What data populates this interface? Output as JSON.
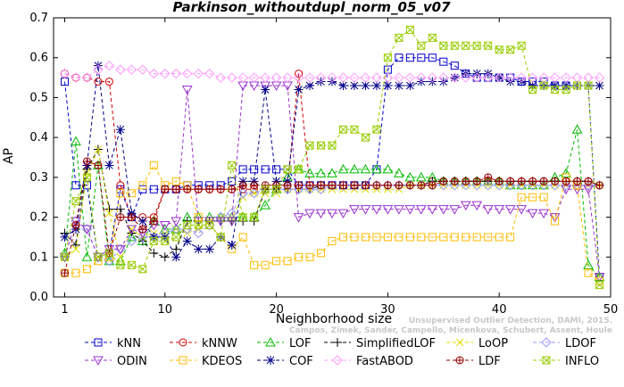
{
  "chart_data": {
    "type": "line",
    "title": "Parkinson_withoutdupl_norm_05_v07",
    "xlabel": "Neighborhood size",
    "ylabel": "AP",
    "xlim": [
      0,
      50
    ],
    "ylim": [
      0,
      0.7
    ],
    "xticks": [
      1,
      10,
      20,
      30,
      40,
      50
    ],
    "yticks": [
      0.0,
      0.1,
      0.2,
      0.3,
      0.4,
      0.5,
      0.6,
      0.7
    ],
    "x": [
      1,
      2,
      3,
      4,
      5,
      6,
      7,
      8,
      9,
      10,
      11,
      12,
      13,
      14,
      15,
      16,
      17,
      18,
      19,
      20,
      21,
      22,
      23,
      24,
      25,
      26,
      27,
      28,
      29,
      30,
      31,
      32,
      33,
      34,
      35,
      36,
      37,
      38,
      39,
      40,
      41,
      42,
      43,
      44,
      45,
      46,
      47,
      48,
      49
    ],
    "grid": false,
    "legend_position": "bottom",
    "watermark": [
      "Unsupervised Outlier Detection, DAMI, 2015.",
      "Campos, Zimek, Sander, Campello, Micenkova, Schubert, Assent, Houle"
    ],
    "series": [
      {
        "name": "kNN",
        "color": "#0000cc",
        "marker": "square",
        "values": [
          0.54,
          0.28,
          0.28,
          0.1,
          0.11,
          0.27,
          0.2,
          0.27,
          0.27,
          0.27,
          0.27,
          0.28,
          0.28,
          0.28,
          0.28,
          0.29,
          0.32,
          0.32,
          0.32,
          0.32,
          0.32,
          0.28,
          0.28,
          0.28,
          0.28,
          0.28,
          0.28,
          0.28,
          0.32,
          0.57,
          0.6,
          0.6,
          0.6,
          0.6,
          0.59,
          0.58,
          0.56,
          0.55,
          0.55,
          0.55,
          0.55,
          0.54,
          0.54,
          0.54,
          0.53,
          0.53,
          0.53,
          0.53,
          0.05
        ]
      },
      {
        "name": "kNNW",
        "color": "#cc0000",
        "marker": "circle",
        "values": [
          0.56,
          0.55,
          0.55,
          0.54,
          0.54,
          0.28,
          0.2,
          0.2,
          0.2,
          0.27,
          0.27,
          0.27,
          0.27,
          0.27,
          0.27,
          0.27,
          0.27,
          0.27,
          0.27,
          0.27,
          0.28,
          0.56,
          0.28,
          0.28,
          0.28,
          0.28,
          0.28,
          0.28,
          0.28,
          0.28,
          0.28,
          0.28,
          0.28,
          0.29,
          0.29,
          0.29,
          0.29,
          0.29,
          0.29,
          0.29,
          0.29,
          0.29,
          0.29,
          0.29,
          0.29,
          0.29,
          0.29,
          0.29,
          0.28
        ]
      },
      {
        "name": "LOF",
        "color": "#00bb00",
        "marker": "triangle-up",
        "values": [
          0.11,
          0.39,
          0.1,
          0.33,
          0.09,
          0.09,
          0.15,
          0.14,
          0.19,
          0.17,
          0.17,
          0.2,
          0.2,
          0.2,
          0.2,
          0.2,
          0.2,
          0.2,
          0.23,
          0.27,
          0.3,
          0.32,
          0.31,
          0.31,
          0.31,
          0.32,
          0.32,
          0.32,
          0.32,
          0.32,
          0.31,
          0.3,
          0.3,
          0.3,
          0.29,
          0.29,
          0.29,
          0.29,
          0.29,
          0.29,
          0.28,
          0.28,
          0.28,
          0.28,
          0.3,
          0.31,
          0.42,
          0.08,
          0.05
        ]
      },
      {
        "name": "SimplifiedLOF",
        "color": "#000000",
        "marker": "plus",
        "values": [
          0.16,
          0.13,
          0.32,
          0.37,
          0.22,
          0.22,
          0.16,
          0.14,
          0.11,
          0.1,
          0.12,
          0.19,
          0.19,
          0.19,
          0.19,
          0.19,
          0.19,
          0.19,
          0.27,
          0.27,
          0.27,
          0.27,
          0.27,
          0.28,
          0.28,
          0.28,
          0.28,
          0.28,
          0.28,
          0.28,
          0.28,
          0.28,
          0.28,
          0.29,
          0.29,
          0.29,
          0.29,
          0.29,
          0.29,
          0.29,
          0.29,
          0.29,
          0.29,
          0.29,
          0.29,
          0.29,
          0.29,
          0.29,
          0.28
        ]
      },
      {
        "name": "LoOP",
        "color": "#dddd00",
        "marker": "x",
        "values": [
          0.1,
          0.12,
          0.31,
          0.37,
          0.21,
          0.1,
          0.17,
          0.15,
          0.16,
          0.16,
          0.17,
          0.16,
          0.17,
          0.19,
          0.2,
          0.2,
          0.25,
          0.26,
          0.26,
          0.26,
          0.27,
          0.27,
          0.27,
          0.27,
          0.27,
          0.27,
          0.27,
          0.27,
          0.27,
          0.27,
          0.27,
          0.28,
          0.28,
          0.28,
          0.28,
          0.28,
          0.28,
          0.28,
          0.28,
          0.28,
          0.28,
          0.28,
          0.28,
          0.28,
          0.28,
          0.28,
          0.28,
          0.28,
          0.28
        ]
      },
      {
        "name": "LDOF",
        "color": "#9999ff",
        "marker": "diamond",
        "values": [
          0.1,
          0.19,
          0.17,
          0.1,
          0.09,
          0.12,
          0.14,
          0.15,
          0.15,
          0.16,
          0.17,
          0.17,
          0.16,
          0.18,
          0.2,
          0.21,
          0.26,
          0.26,
          0.27,
          0.27,
          0.27,
          0.27,
          0.27,
          0.27,
          0.28,
          0.28,
          0.28,
          0.28,
          0.28,
          0.28,
          0.28,
          0.28,
          0.28,
          0.28,
          0.28,
          0.28,
          0.28,
          0.28,
          0.28,
          0.28,
          0.28,
          0.28,
          0.28,
          0.28,
          0.28,
          0.28,
          0.28,
          0.28,
          0.28
        ]
      },
      {
        "name": "ODIN",
        "color": "#9933cc",
        "marker": "triangle-down",
        "values": [
          0.1,
          0.19,
          0.17,
          0.1,
          0.12,
          0.12,
          0.17,
          0.16,
          0.18,
          0.18,
          0.19,
          0.52,
          0.19,
          0.19,
          0.19,
          0.19,
          0.53,
          0.53,
          0.53,
          0.53,
          0.53,
          0.2,
          0.21,
          0.21,
          0.21,
          0.21,
          0.22,
          0.22,
          0.22,
          0.22,
          0.22,
          0.22,
          0.22,
          0.22,
          0.22,
          0.22,
          0.23,
          0.23,
          0.22,
          0.22,
          0.22,
          0.22,
          0.21,
          0.21,
          0.2,
          0.27,
          0.27,
          0.27,
          0.05
        ]
      },
      {
        "name": "KDEOS",
        "color": "#ffbb00",
        "marker": "square",
        "values": [
          0.06,
          0.06,
          0.07,
          0.09,
          0.1,
          0.26,
          0.26,
          0.28,
          0.33,
          0.28,
          0.29,
          0.28,
          0.2,
          0.18,
          0.15,
          0.12,
          0.15,
          0.08,
          0.08,
          0.09,
          0.09,
          0.1,
          0.1,
          0.11,
          0.14,
          0.15,
          0.15,
          0.15,
          0.15,
          0.15,
          0.15,
          0.15,
          0.15,
          0.15,
          0.15,
          0.15,
          0.15,
          0.15,
          0.15,
          0.15,
          0.15,
          0.25,
          0.25,
          0.25,
          0.19,
          0.3,
          0.28,
          0.06,
          0.04
        ]
      },
      {
        "name": "COF",
        "color": "#000088",
        "marker": "star",
        "values": [
          0.15,
          0.17,
          0.33,
          0.58,
          0.33,
          0.42,
          0.21,
          0.19,
          0.15,
          0.15,
          0.1,
          0.14,
          0.12,
          0.12,
          0.15,
          0.13,
          0.29,
          0.29,
          0.52,
          0.29,
          0.29,
          0.52,
          0.53,
          0.54,
          0.54,
          0.53,
          0.53,
          0.53,
          0.53,
          0.53,
          0.53,
          0.53,
          0.54,
          0.54,
          0.54,
          0.55,
          0.56,
          0.56,
          0.56,
          0.55,
          0.54,
          0.54,
          0.53,
          0.53,
          0.53,
          0.53,
          0.53,
          0.53,
          0.53
        ]
      },
      {
        "name": "FastABOD",
        "color": "#ff99ff",
        "marker": "diamond",
        "values": [
          0.56,
          0.55,
          0.55,
          0.57,
          0.58,
          0.57,
          0.57,
          0.57,
          0.56,
          0.56,
          0.56,
          0.56,
          0.56,
          0.56,
          0.55,
          0.55,
          0.55,
          0.55,
          0.55,
          0.55,
          0.55,
          0.55,
          0.55,
          0.55,
          0.55,
          0.55,
          0.55,
          0.55,
          0.55,
          0.55,
          0.55,
          0.55,
          0.55,
          0.55,
          0.55,
          0.55,
          0.55,
          0.55,
          0.55,
          0.55,
          0.55,
          0.55,
          0.55,
          0.55,
          0.55,
          0.55,
          0.55,
          0.55,
          0.55
        ]
      },
      {
        "name": "LDF",
        "color": "#990000",
        "marker": "circle-plus",
        "values": [
          0.06,
          0.18,
          0.34,
          0.33,
          0.11,
          0.2,
          0.2,
          0.17,
          0.19,
          0.27,
          0.27,
          0.27,
          0.27,
          0.27,
          0.27,
          0.27,
          0.28,
          0.28,
          0.28,
          0.28,
          0.28,
          0.28,
          0.28,
          0.28,
          0.28,
          0.28,
          0.28,
          0.28,
          0.28,
          0.28,
          0.28,
          0.28,
          0.28,
          0.28,
          0.29,
          0.29,
          0.29,
          0.29,
          0.3,
          0.29,
          0.29,
          0.29,
          0.29,
          0.29,
          0.29,
          0.29,
          0.29,
          0.29,
          0.28
        ]
      },
      {
        "name": "INFLO",
        "color": "#99cc00",
        "marker": "square-x",
        "values": [
          0.1,
          0.24,
          0.3,
          0.1,
          0.11,
          0.08,
          0.08,
          0.07,
          0.14,
          0.14,
          0.15,
          0.18,
          0.18,
          0.18,
          0.15,
          0.33,
          0.2,
          0.2,
          0.27,
          0.27,
          0.32,
          0.32,
          0.38,
          0.38,
          0.38,
          0.42,
          0.42,
          0.4,
          0.42,
          0.6,
          0.65,
          0.67,
          0.63,
          0.65,
          0.63,
          0.63,
          0.63,
          0.63,
          0.63,
          0.62,
          0.62,
          0.63,
          0.52,
          0.53,
          0.52,
          0.52,
          0.53,
          0.53,
          0.03
        ]
      }
    ]
  }
}
